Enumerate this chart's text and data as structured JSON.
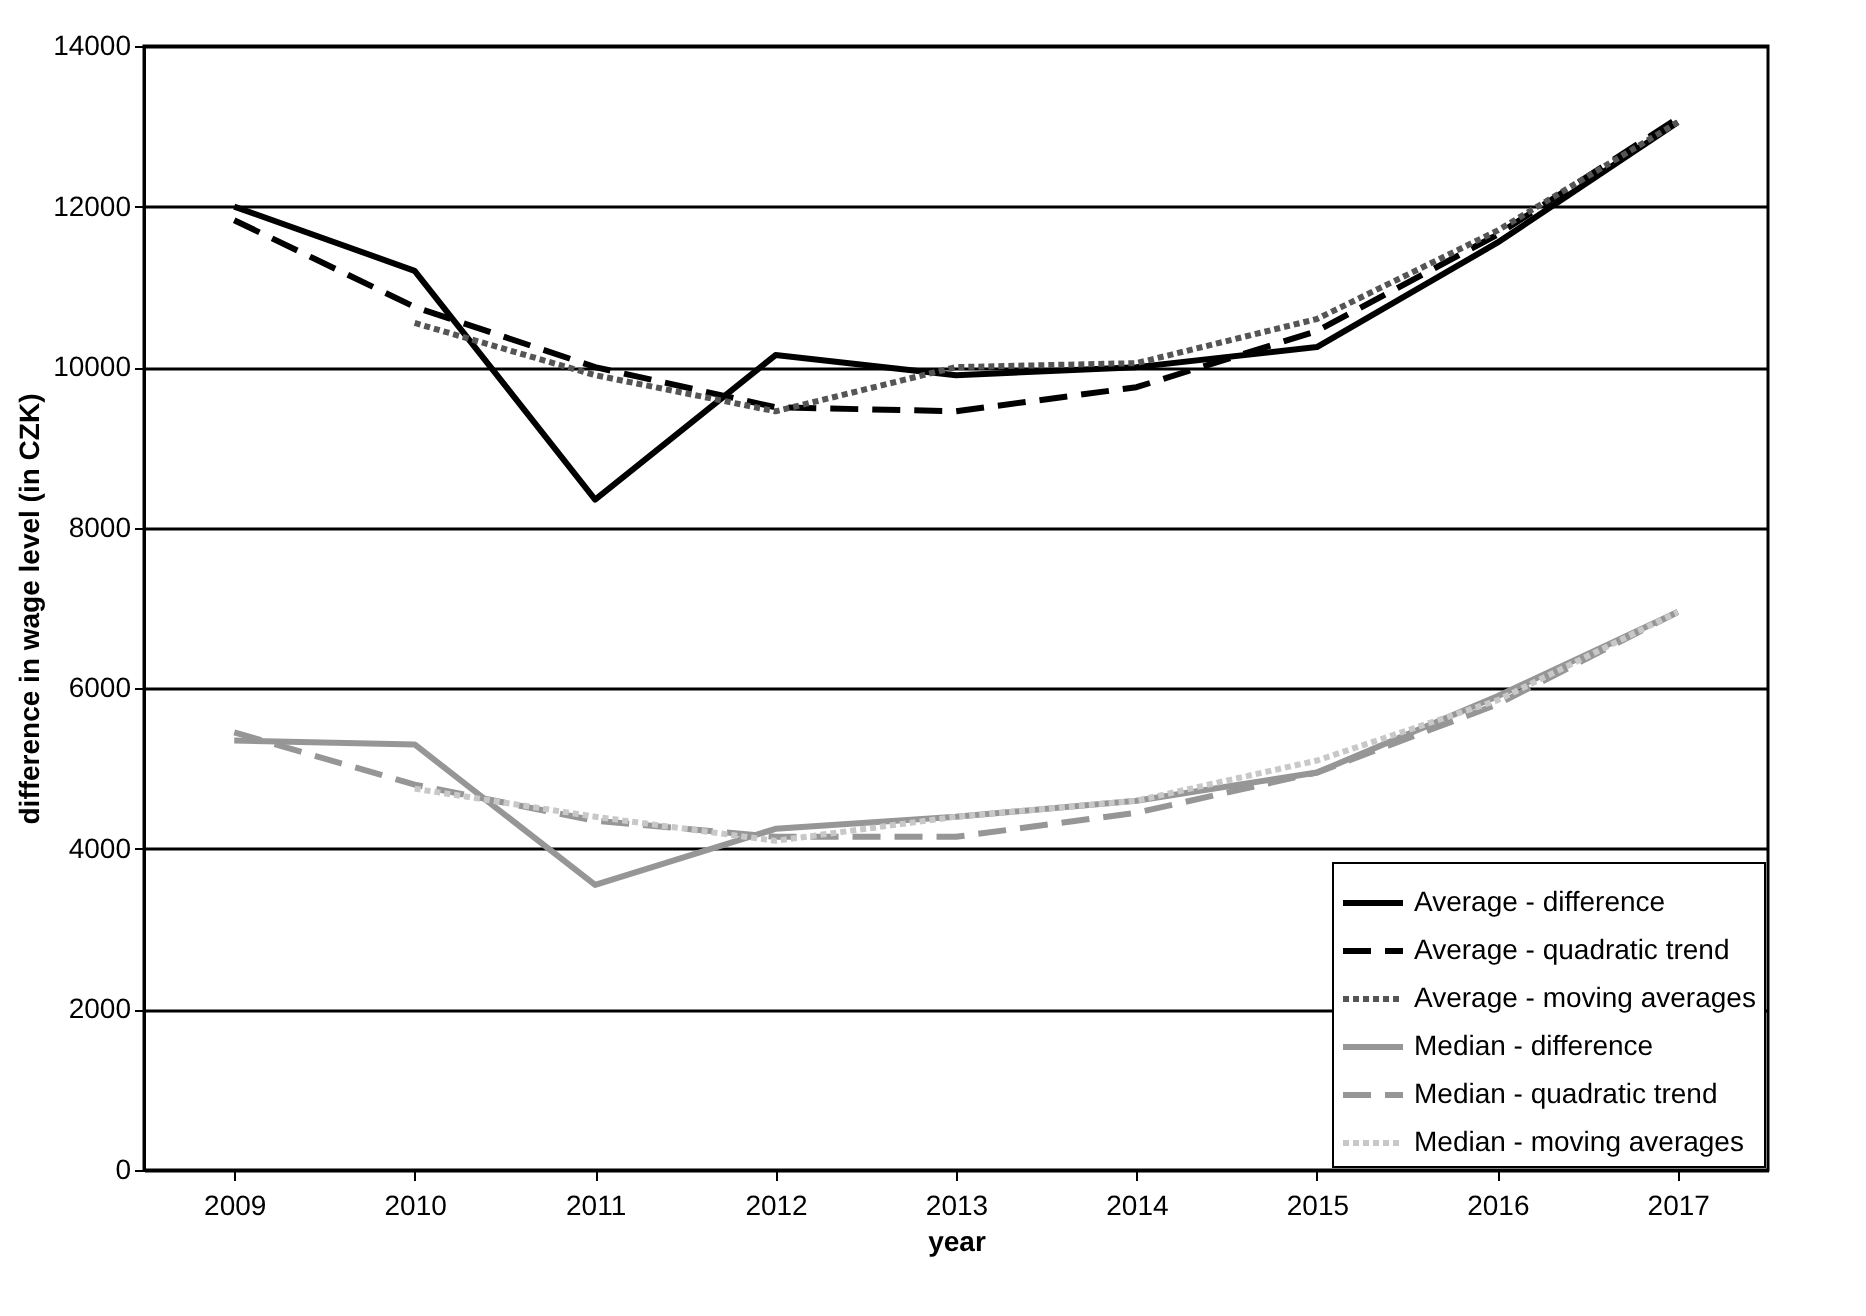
{
  "chart_data": {
    "type": "line",
    "xlabel": "year",
    "ylabel": "difference in wage level (in CZK)",
    "categories": [
      "2009",
      "2010",
      "2011",
      "2012",
      "2013",
      "2014",
      "2015",
      "2016",
      "2017"
    ],
    "ylim": [
      0,
      14000
    ],
    "yticks": [
      0,
      2000,
      4000,
      6000,
      8000,
      10000,
      12000,
      14000
    ],
    "grid": "y",
    "legend": "bottom right",
    "series": [
      {
        "name": "Average - difference",
        "color": "#000000",
        "line_style": "solid",
        "values": [
          12000,
          11200,
          8350,
          10150,
          9900,
          10000,
          10250,
          11550,
          13050
        ]
      },
      {
        "name": "Average - quadratic trend",
        "color": "#000000",
        "line_style": "dashed",
        "values": [
          11830,
          10750,
          10000,
          9500,
          9450,
          9750,
          10450,
          11650,
          13100
        ]
      },
      {
        "name": "Average - moving averages",
        "color": "#555555",
        "line_style": "dotted",
        "values": [
          null,
          10550,
          9900,
          9450,
          10000,
          10050,
          10600,
          11700,
          13050
        ]
      },
      {
        "name": "Median - difference",
        "color": "#969696",
        "line_style": "solid",
        "values": [
          5350,
          5300,
          3550,
          4250,
          4400,
          4600,
          4950,
          5900,
          6950
        ]
      },
      {
        "name": "Median - quadratic trend",
        "color": "#969696",
        "line_style": "dashed",
        "values": [
          5450,
          4800,
          4350,
          4150,
          4150,
          4450,
          4950,
          5800,
          6950
        ]
      },
      {
        "name": "Median - moving averages",
        "color": "#c8c8c8",
        "line_style": "dotted",
        "values": [
          null,
          4750,
          4400,
          4100,
          4400,
          4600,
          5100,
          5850,
          6950
        ]
      }
    ]
  }
}
